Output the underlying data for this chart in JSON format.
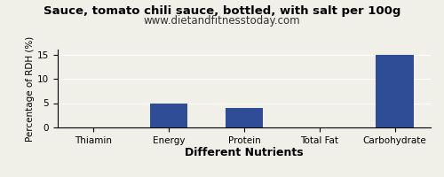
{
  "title": "Sauce, tomato chili sauce, bottled, with salt per 100g",
  "subtitle": "www.dietandfitnesstoday.com",
  "xlabel": "Different Nutrients",
  "ylabel": "Percentage of RDH (%)",
  "categories": [
    "Thiamin",
    "Energy",
    "Protein",
    "Total Fat",
    "Carbohydrate"
  ],
  "values": [
    0,
    5,
    4,
    0,
    15
  ],
  "bar_color": "#2e4d96",
  "ylim": [
    0,
    16
  ],
  "yticks": [
    0,
    5,
    10,
    15
  ],
  "background_color": "#f0f0e8",
  "title_fontsize": 9.5,
  "subtitle_fontsize": 8.5,
  "xlabel_fontsize": 9,
  "ylabel_fontsize": 7.5,
  "tick_fontsize": 7.5
}
